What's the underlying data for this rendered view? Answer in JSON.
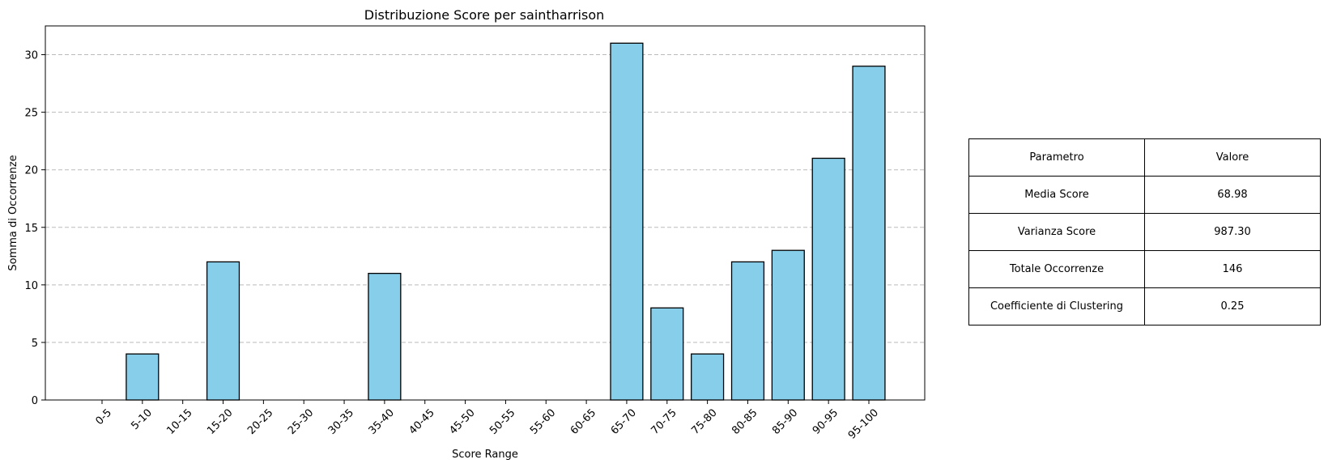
{
  "chart_data": {
    "type": "bar",
    "title": "Distribuzione Score per saintharrison",
    "xlabel": "Score Range",
    "ylabel": "Somma di Occorrenze",
    "categories": [
      "0-5",
      "5-10",
      "10-15",
      "15-20",
      "20-25",
      "25-30",
      "30-35",
      "35-40",
      "40-45",
      "45-50",
      "50-55",
      "55-60",
      "60-65",
      "65-70",
      "70-75",
      "75-80",
      "80-85",
      "85-90",
      "90-95",
      "95-100"
    ],
    "values": [
      0,
      4,
      0,
      12,
      0,
      0,
      0,
      11,
      0,
      0,
      0,
      0,
      0,
      31,
      8,
      4,
      12,
      13,
      21,
      29
    ],
    "ylim": [
      0,
      32.5
    ],
    "yticks": [
      0,
      5,
      10,
      15,
      20,
      25,
      30
    ],
    "grid": "y",
    "bar_color": "#87CEEB",
    "edge_color": "#000000"
  },
  "table": {
    "header": [
      "Parametro",
      "Valore"
    ],
    "rows": [
      [
        "Media Score",
        "68.98"
      ],
      [
        "Varianza Score",
        "987.30"
      ],
      [
        "Totale Occorrenze",
        "146"
      ],
      [
        "Coefficiente di Clustering",
        "0.25"
      ]
    ]
  }
}
